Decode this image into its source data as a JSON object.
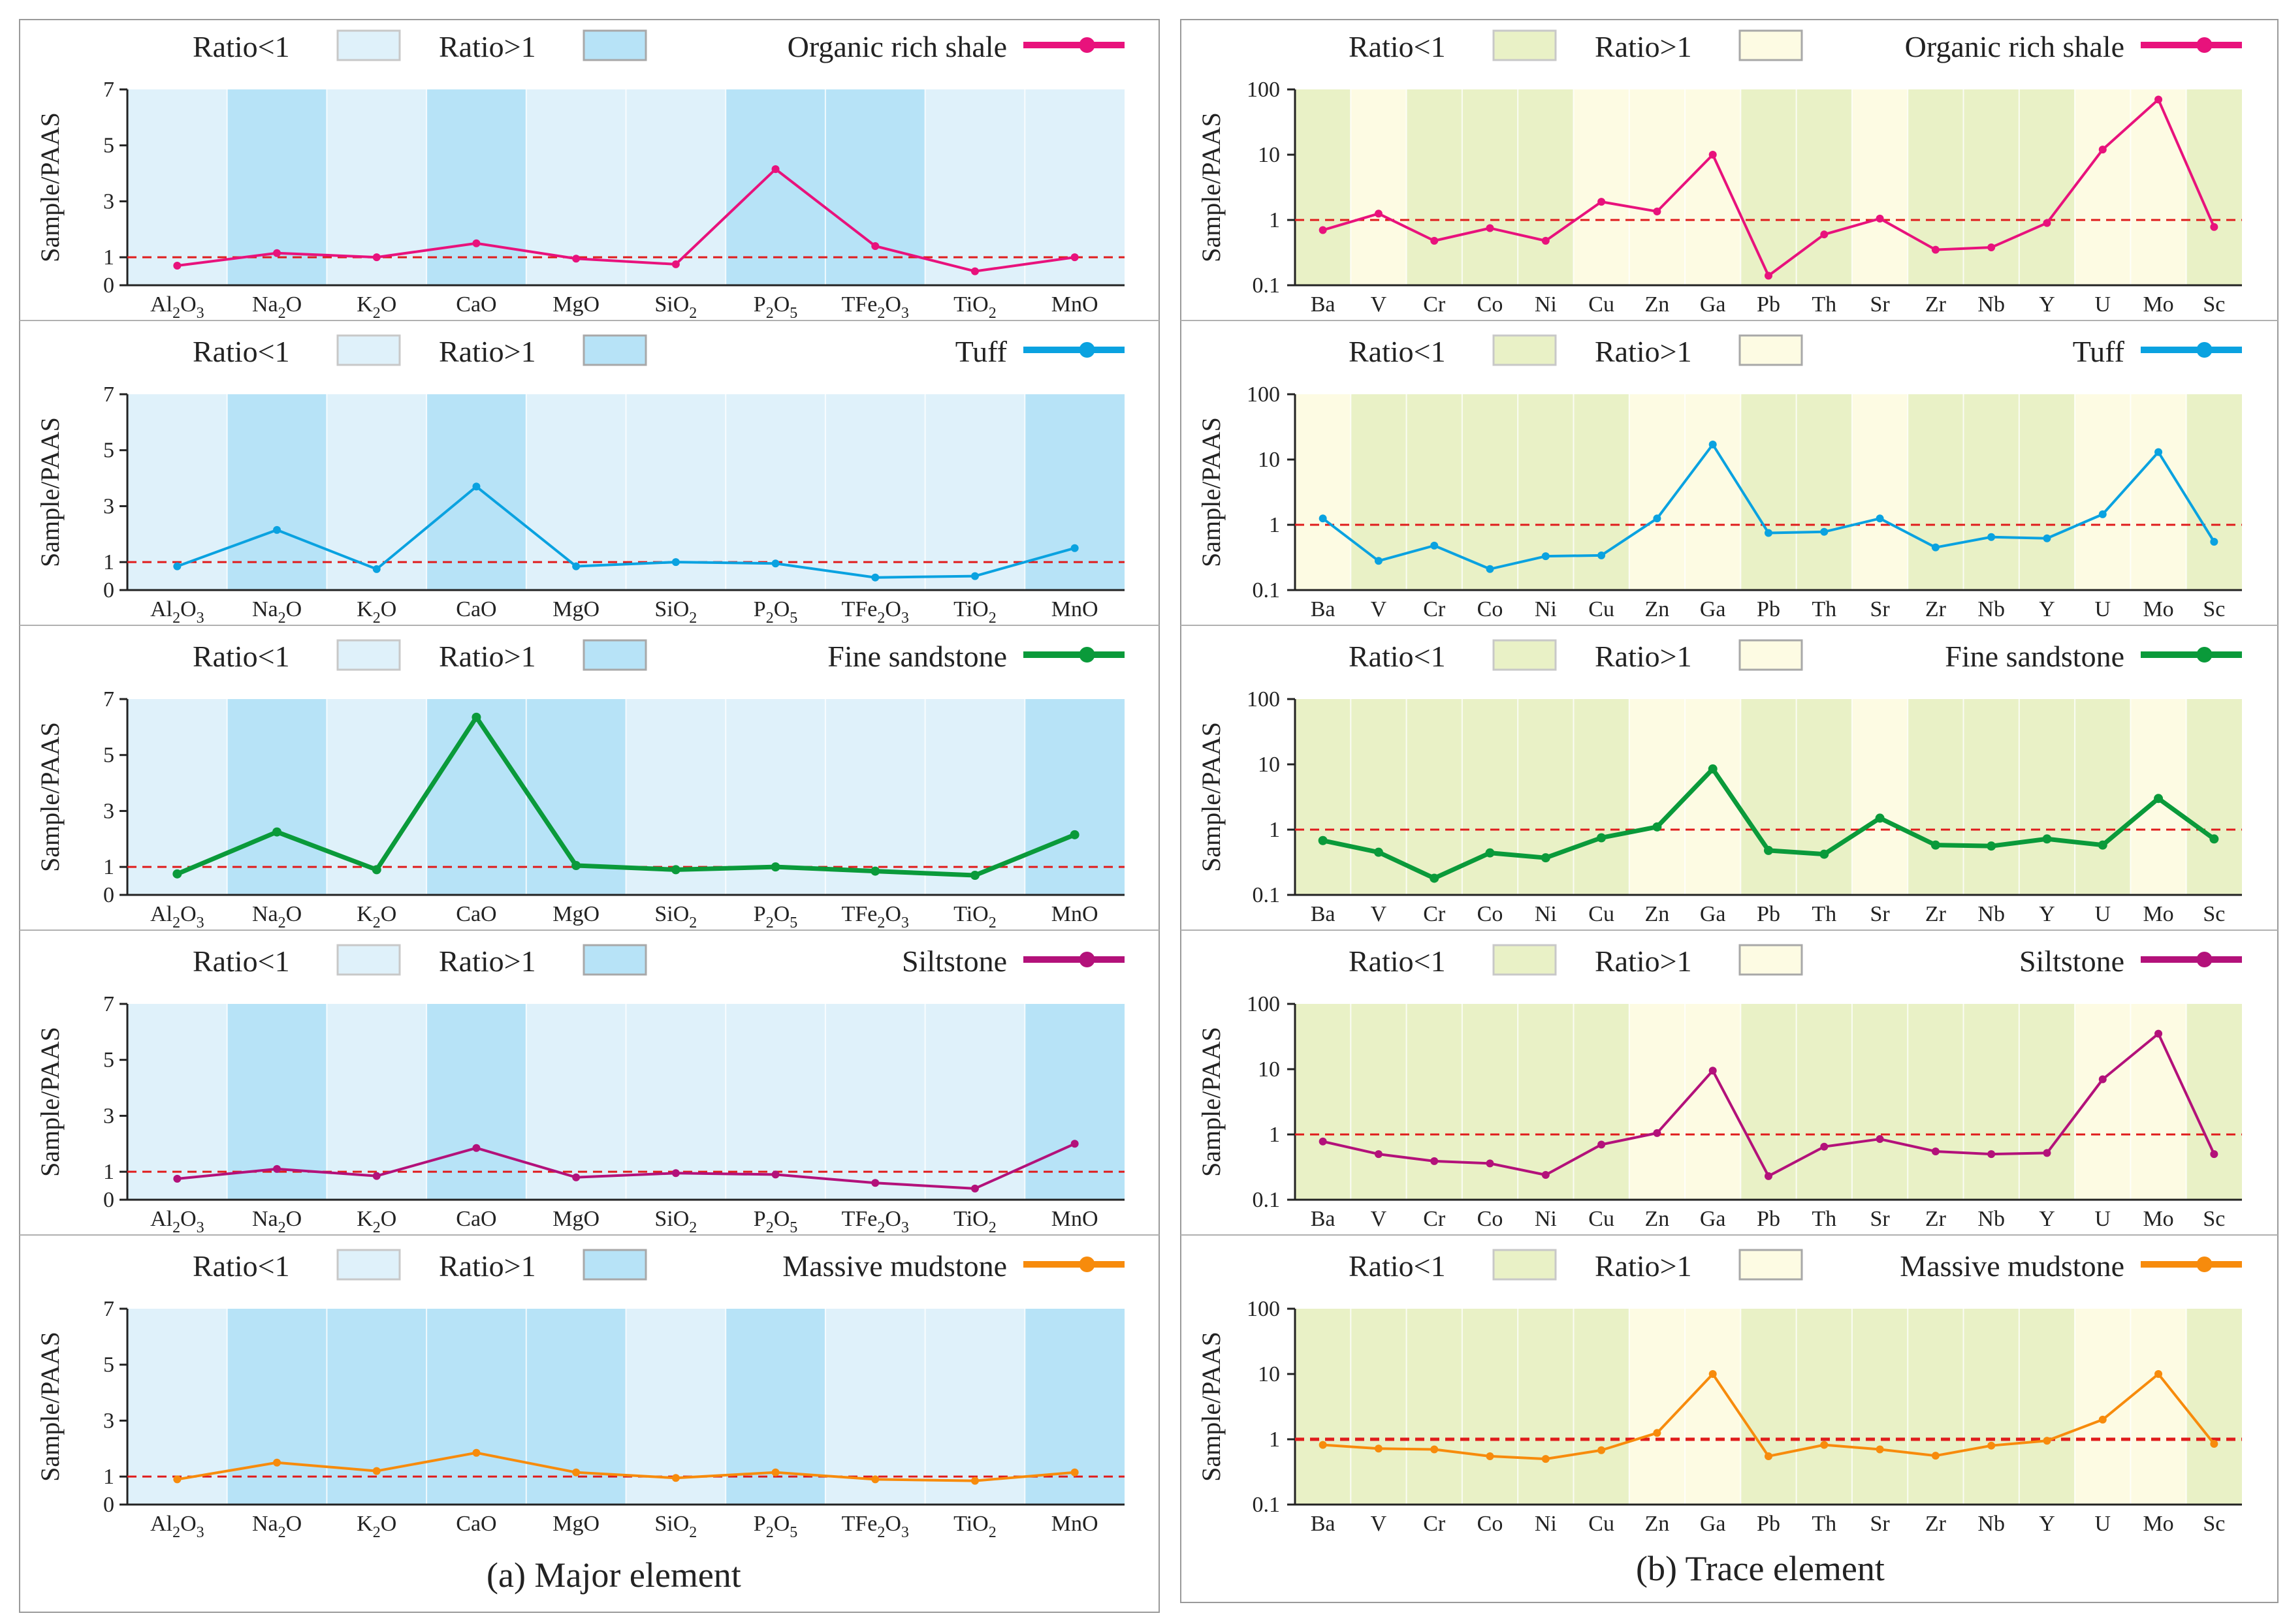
{
  "captions": {
    "a": "(a)  Major element",
    "b": "(b)  Trace element"
  },
  "legend": {
    "ratio_lt": "Ratio<1",
    "ratio_gt": "Ratio>1"
  },
  "colors": {
    "major_lt": "#dff1fa",
    "major_gt": "#b7e3f7",
    "trace_lt": "#e9f1c6",
    "trace_gt": "#fdfbe3",
    "dashed_ref": "#e01c1c"
  },
  "chart_data": [
    {
      "panel": "a",
      "title": "Major element",
      "type": "line",
      "ylabel": "Sample/PAAS",
      "yscale": "linear",
      "ylim": [
        0,
        7
      ],
      "yticks": [
        0,
        1,
        3,
        5,
        7
      ],
      "categories": [
        "Al2O3",
        "Na2O",
        "K2O",
        "CaO",
        "MgO",
        "SiO2",
        "P2O5",
        "TFe2O3",
        "TiO2",
        "MnO"
      ],
      "category_labels": [
        {
          "pre": "Al",
          "sub": "2",
          "mid": "O",
          "sub2": "3"
        },
        {
          "pre": "Na",
          "sub": "2",
          "mid": "O",
          "sub2": ""
        },
        {
          "pre": "K",
          "sub": "2",
          "mid": "O",
          "sub2": ""
        },
        {
          "pre": "CaO",
          "sub": "",
          "mid": "",
          "sub2": ""
        },
        {
          "pre": "MgO",
          "sub": "",
          "mid": "",
          "sub2": ""
        },
        {
          "pre": "SiO",
          "sub": "2",
          "mid": "",
          "sub2": ""
        },
        {
          "pre": "P",
          "sub": "2",
          "mid": "O",
          "sub2": "5"
        },
        {
          "pre": "TFe",
          "sub": "2",
          "mid": "O",
          "sub2": "3"
        },
        {
          "pre": "TiO",
          "sub": "2",
          "mid": "",
          "sub2": ""
        },
        {
          "pre": "MnO",
          "sub": "",
          "mid": "",
          "sub2": ""
        }
      ],
      "reference_line": 1,
      "series": [
        {
          "name": "Organic rich shale",
          "color": "#e8127c",
          "width": 3,
          "values": [
            0.7,
            1.15,
            1.0,
            1.5,
            0.95,
            0.75,
            4.15,
            1.4,
            0.5,
            1.0
          ],
          "ratio_gt": [
            false,
            true,
            false,
            true,
            false,
            false,
            true,
            true,
            false,
            false
          ]
        },
        {
          "name": "Tuff",
          "color": "#0aa2e0",
          "width": 3,
          "values": [
            0.85,
            2.15,
            0.75,
            3.7,
            0.85,
            1.0,
            0.95,
            0.45,
            0.5,
            1.5
          ],
          "ratio_gt": [
            false,
            true,
            false,
            true,
            false,
            false,
            false,
            false,
            false,
            true
          ]
        },
        {
          "name": "Fine sandstone",
          "color": "#0a9a3a",
          "width": 6,
          "values": [
            0.75,
            2.25,
            0.9,
            6.35,
            1.05,
            0.9,
            1.0,
            0.85,
            0.7,
            2.15
          ],
          "ratio_gt": [
            false,
            true,
            false,
            true,
            true,
            false,
            false,
            false,
            false,
            true
          ]
        },
        {
          "name": "Siltstone",
          "color": "#b3117a",
          "width": 3,
          "values": [
            0.75,
            1.1,
            0.85,
            1.85,
            0.8,
            0.95,
            0.9,
            0.6,
            0.4,
            2.0
          ],
          "ratio_gt": [
            false,
            true,
            false,
            true,
            false,
            false,
            false,
            false,
            false,
            true
          ]
        },
        {
          "name": "Massive mudstone",
          "color": "#f78b0c",
          "width": 3,
          "values": [
            0.9,
            1.5,
            1.2,
            1.85,
            1.15,
            0.95,
            1.15,
            0.9,
            0.85,
            1.15
          ],
          "ratio_gt": [
            false,
            true,
            true,
            true,
            true,
            false,
            true,
            false,
            false,
            true
          ]
        }
      ]
    },
    {
      "panel": "b",
      "title": "Trace element",
      "type": "line",
      "ylabel": "Sample/PAAS",
      "yscale": "log",
      "ylim": [
        0.1,
        100
      ],
      "yticks": [
        0.1,
        1,
        10,
        100
      ],
      "ytick_labels": [
        "0.1",
        "1",
        "10",
        "100"
      ],
      "categories": [
        "Ba",
        "V",
        "Cr",
        "Co",
        "Ni",
        "Cu",
        "Zn",
        "Ga",
        "Pb",
        "Th",
        "Sr",
        "Zr",
        "Nb",
        "Y",
        "U",
        "Mo",
        "Sc"
      ],
      "reference_line": 1,
      "series": [
        {
          "name": "Organic rich shale",
          "color": "#e8127c",
          "width": 3,
          "values": [
            0.7,
            1.25,
            0.48,
            0.75,
            0.48,
            1.9,
            1.35,
            10,
            0.14,
            0.6,
            1.05,
            0.35,
            0.38,
            0.9,
            12,
            70,
            0.78
          ],
          "ratio_gt": [
            false,
            true,
            false,
            false,
            false,
            true,
            true,
            true,
            false,
            false,
            true,
            false,
            false,
            false,
            true,
            true,
            false
          ]
        },
        {
          "name": "Tuff",
          "color": "#0aa2e0",
          "width": 3,
          "values": [
            1.25,
            0.28,
            0.48,
            0.21,
            0.33,
            0.34,
            1.25,
            17,
            0.75,
            0.78,
            1.25,
            0.45,
            0.65,
            0.62,
            1.45,
            13,
            0.55
          ],
          "ratio_gt": [
            true,
            false,
            false,
            false,
            false,
            false,
            true,
            true,
            false,
            false,
            true,
            false,
            false,
            false,
            true,
            true,
            false
          ]
        },
        {
          "name": "Fine sandstone",
          "color": "#0a9a3a",
          "width": 6,
          "values": [
            0.68,
            0.45,
            0.18,
            0.44,
            0.37,
            0.75,
            1.1,
            8.5,
            0.48,
            0.42,
            1.5,
            0.58,
            0.56,
            0.72,
            0.58,
            3.0,
            0.72
          ],
          "ratio_gt": [
            false,
            false,
            false,
            false,
            false,
            false,
            true,
            true,
            false,
            false,
            true,
            false,
            false,
            false,
            false,
            true,
            false
          ]
        },
        {
          "name": "Siltstone",
          "color": "#b3117a",
          "width": 3,
          "values": [
            0.78,
            0.5,
            0.39,
            0.36,
            0.24,
            0.7,
            1.05,
            9.5,
            0.23,
            0.65,
            0.85,
            0.55,
            0.5,
            0.52,
            7,
            35,
            0.5
          ],
          "ratio_gt": [
            false,
            false,
            false,
            false,
            false,
            false,
            true,
            true,
            false,
            false,
            false,
            false,
            false,
            false,
            true,
            true,
            false
          ]
        },
        {
          "name": "Massive mudstone",
          "color": "#f78b0c",
          "width": 3,
          "values": [
            0.82,
            0.72,
            0.7,
            0.55,
            0.5,
            0.68,
            1.25,
            10,
            0.55,
            0.82,
            0.7,
            0.56,
            0.8,
            0.95,
            2.0,
            10,
            0.85
          ],
          "ratio_gt": [
            false,
            false,
            false,
            false,
            false,
            false,
            true,
            true,
            false,
            false,
            false,
            false,
            false,
            false,
            true,
            true,
            false
          ]
        }
      ]
    }
  ]
}
